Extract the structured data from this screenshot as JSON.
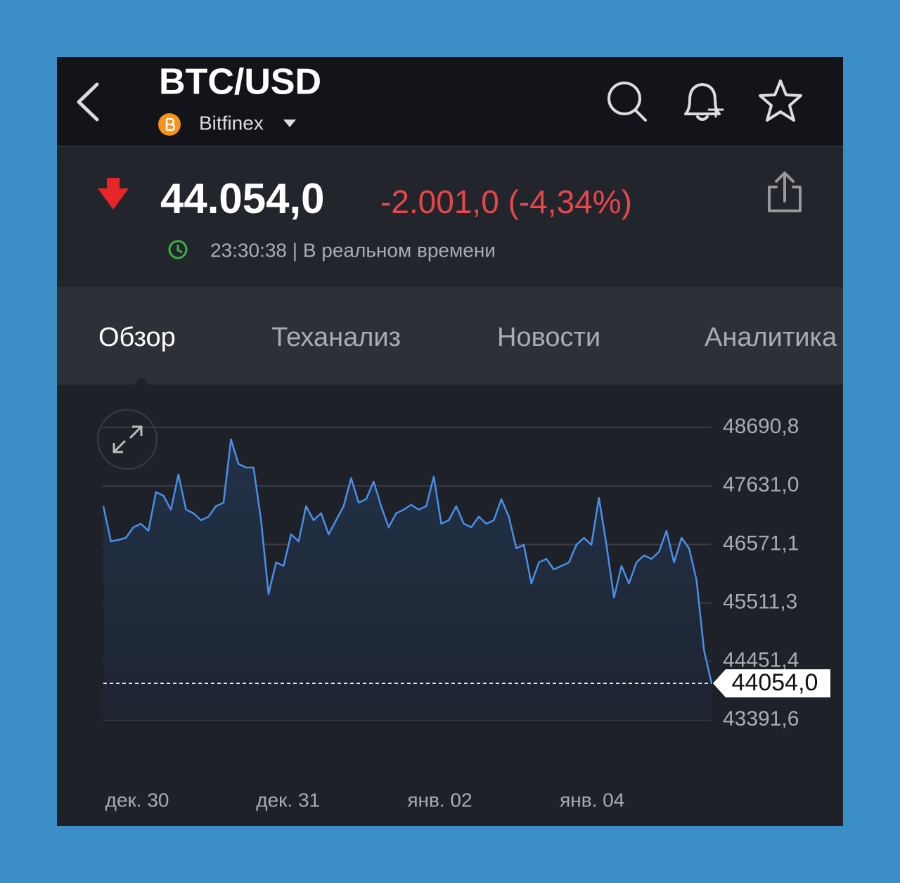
{
  "header": {
    "title": "BTC/USD",
    "exchange": "Bitfinex"
  },
  "quote": {
    "price": "44.054,0",
    "change": "-2.001,0 (-4,34%)",
    "time": "23:30:38 | В реальном времени"
  },
  "tabs": [
    "Обзор",
    "Теханализ",
    "Новости",
    "Аналитика"
  ],
  "chart_data": {
    "type": "line",
    "series": [
      {
        "color": "#4a8fe8",
        "values": [
          47264,
          46627,
          46652,
          46691,
          46882,
          46945,
          46818,
          47519,
          47455,
          47200,
          47837,
          47200,
          47137,
          47009,
          47073,
          47264,
          47328,
          48474,
          48029,
          47965,
          47965,
          47009,
          45672,
          46245,
          46181,
          46755,
          46627,
          47264,
          47009,
          47137,
          46755,
          47009,
          47264,
          47774,
          47328,
          47392,
          47710,
          47264,
          46882,
          47137,
          47200,
          47290,
          47200,
          47264,
          47799,
          46945,
          47009,
          47264,
          46945,
          46882,
          47073,
          46945,
          47009,
          47392,
          47073,
          46500,
          46563,
          45863,
          46245,
          46309,
          46118,
          46181,
          46245,
          46563,
          46691,
          46563,
          47417,
          46563,
          45608,
          46181,
          45863,
          46245,
          46372,
          46309,
          46436,
          46818,
          46245,
          46691,
          46500,
          45926,
          44652,
          44054
        ]
      }
    ],
    "xlim": [
      0,
      81
    ],
    "xticks": [
      {
        "value": 4.5,
        "label": "дек. 30"
      },
      {
        "value": 24.6,
        "label": "дек. 31"
      },
      {
        "value": 44.8,
        "label": "янв. 02"
      },
      {
        "value": 65.1,
        "label": "янв. 04"
      }
    ],
    "ylim": [
      43391.6,
      48920
    ],
    "yticks": [
      {
        "value": 48690.8,
        "label": "48690,8"
      },
      {
        "value": 47631.0,
        "label": "47631,0"
      },
      {
        "value": 46571.1,
        "label": "46571,1"
      },
      {
        "value": 45511.3,
        "label": "45511,3"
      },
      {
        "value": 44451.4,
        "label": "44451,4"
      },
      {
        "value": 43391.6,
        "label": "43391,6"
      }
    ],
    "last_price": {
      "value": 44054,
      "label": "44054,0"
    },
    "grid": true
  }
}
